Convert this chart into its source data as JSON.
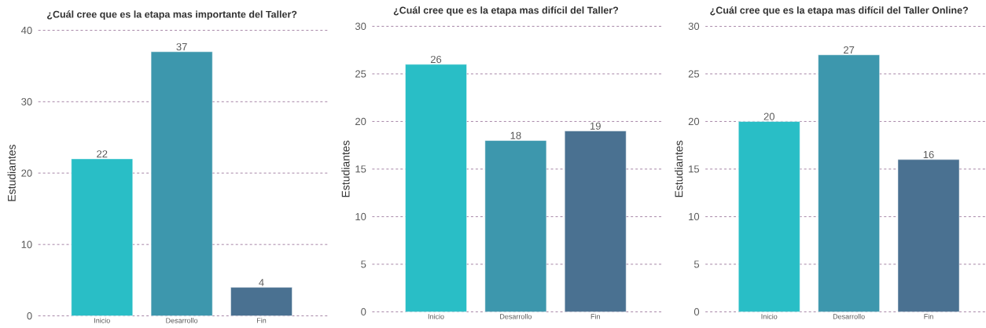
{
  "chart_data": [
    {
      "type": "bar",
      "title": "¿Cuál cree que es la etapa mas importante del Taller?",
      "ylabel": "Estudiantes",
      "categories": [
        "Inicio",
        "Desarrollo",
        "Fin"
      ],
      "values": [
        22,
        37,
        4
      ],
      "colors": [
        "#29bec6",
        "#3d97ad",
        "#4a7191"
      ],
      "ylim": [
        0,
        40
      ],
      "yticks": [
        0,
        10,
        20,
        30,
        40
      ],
      "grid": "y",
      "data_labels": true
    },
    {
      "type": "bar",
      "title": "¿Cuál cree que es la etapa mas difícil del Taller?",
      "ylabel": "Estudiantes",
      "categories": [
        "Inicio",
        "Desarrollo",
        "Fin"
      ],
      "values": [
        26,
        18,
        19
      ],
      "colors": [
        "#29bec6",
        "#3d97ad",
        "#4a7191"
      ],
      "ylim": [
        0,
        30
      ],
      "yticks": [
        0,
        5,
        10,
        15,
        20,
        25,
        30
      ],
      "grid": "y",
      "data_labels": true
    },
    {
      "type": "bar",
      "title": "¿Cuál cree que es la etapa mas difícil del Taller Online?",
      "ylabel": "Estudiantes",
      "categories": [
        "Inicio",
        "Desarrollo",
        "Fin"
      ],
      "values": [
        20,
        27,
        16
      ],
      "colors": [
        "#29bec6",
        "#3d97ad",
        "#4a7191"
      ],
      "ylim": [
        0,
        30
      ],
      "yticks": [
        0,
        5,
        10,
        15,
        20,
        25,
        30
      ],
      "grid": "y",
      "data_labels": true
    }
  ]
}
